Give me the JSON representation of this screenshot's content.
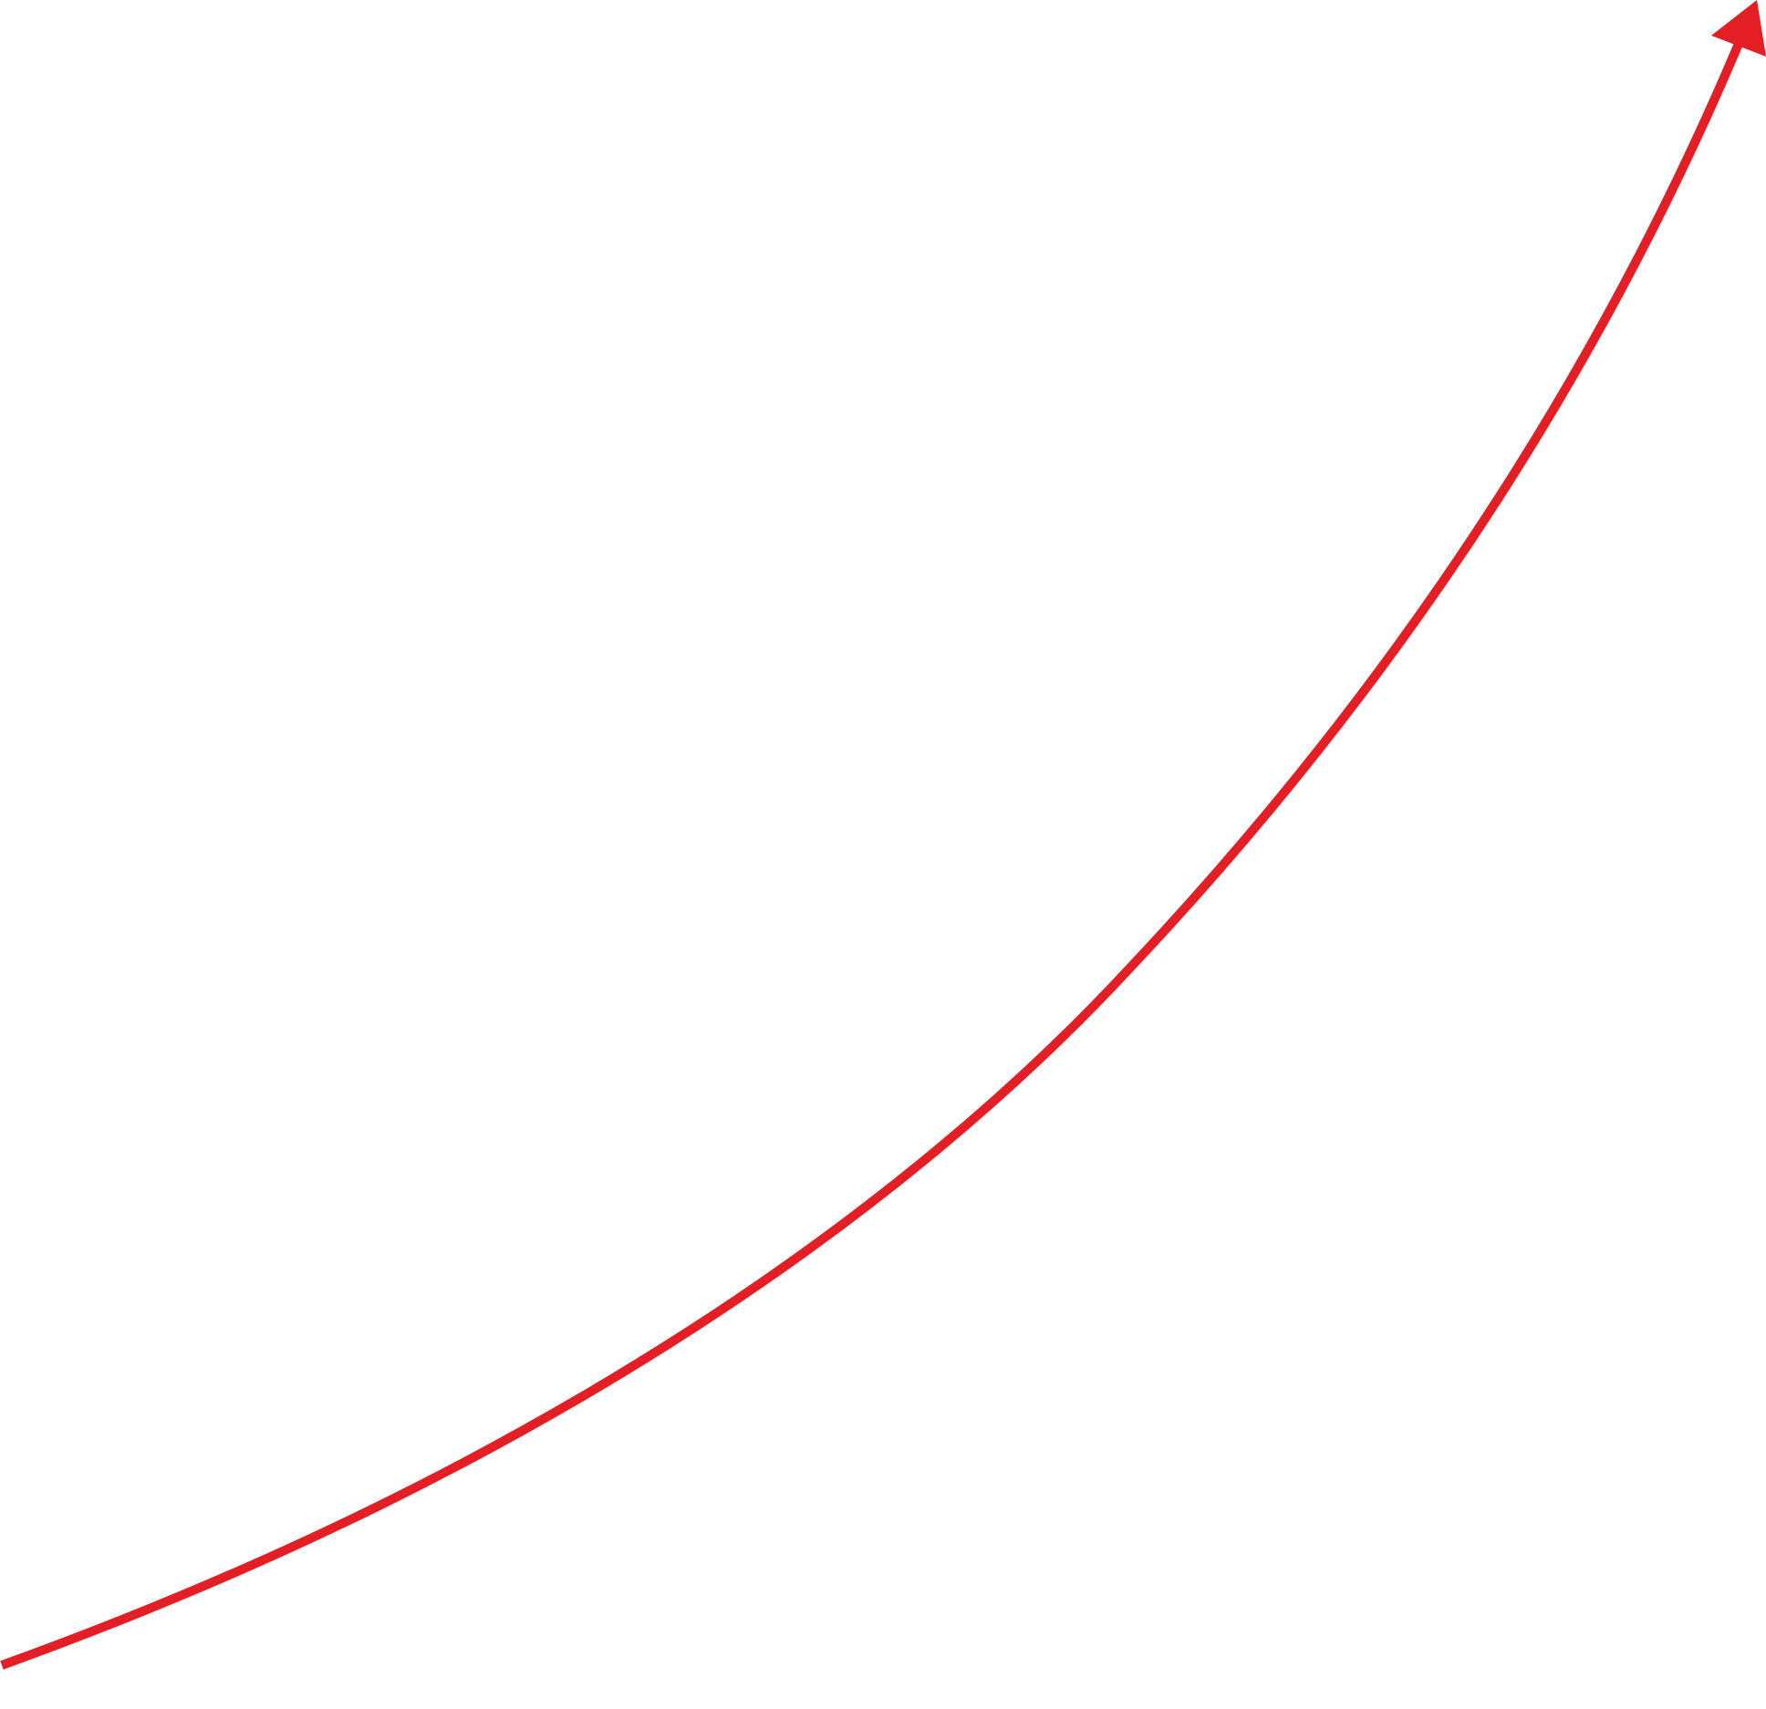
{
  "diagram": {
    "elements": [
      {
        "kind": "curved-arrow",
        "icon": "curved-arrow-icon",
        "direction": "up-right",
        "color": "#e31e24"
      }
    ]
  },
  "colors": {
    "background": "#ffffff",
    "arrow": "#e31e24"
  }
}
